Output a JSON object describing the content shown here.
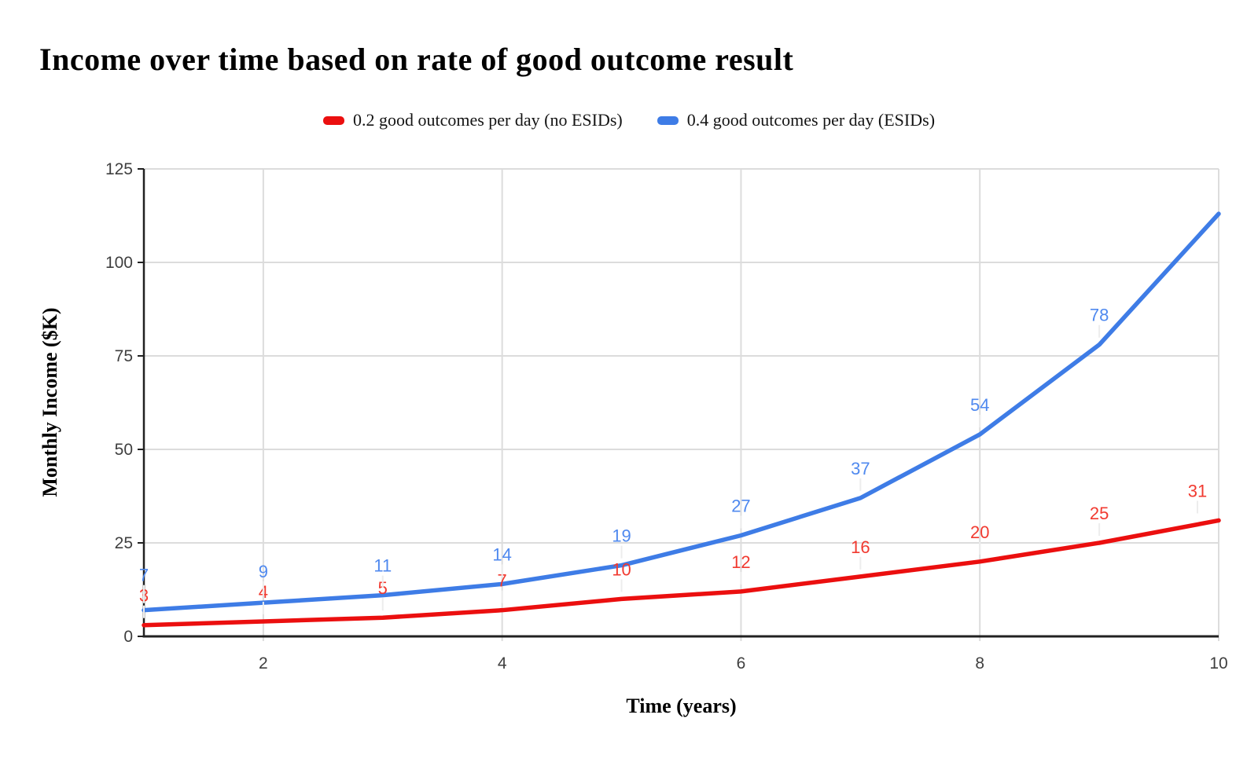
{
  "chart_data": {
    "type": "line",
    "title": "Income over time based on rate of good outcome result",
    "xlabel": "Time (years)",
    "ylabel": "Monthly Income ($K)",
    "xlim": [
      1,
      10
    ],
    "ylim": [
      0,
      125
    ],
    "xticks": [
      2,
      4,
      6,
      8,
      10
    ],
    "yticks": [
      0,
      25,
      50,
      75,
      100,
      125
    ],
    "grid": true,
    "legend_position": "top",
    "x": [
      1,
      2,
      3,
      4,
      5,
      6,
      7,
      8,
      9,
      10
    ],
    "series": [
      {
        "name": "0.2 good outcomes per day (no ESIDs)",
        "key": "no-esids",
        "color": "#eb0f0f",
        "label_color": "#f13a30",
        "values": [
          3,
          4,
          5,
          7,
          10,
          12,
          16,
          20,
          25,
          31
        ],
        "point_labels": [
          "3",
          "4",
          "5",
          "7",
          "10",
          "12",
          "16",
          "20",
          "25",
          "31"
        ]
      },
      {
        "name": "0.4 good outcomes per day (ESIDs)",
        "key": "esids",
        "color": "#3e7ce6",
        "label_color": "#4f89ef",
        "values": [
          7,
          9,
          11,
          14,
          19,
          27,
          37,
          54,
          78,
          113
        ],
        "point_labels": [
          "7",
          "9",
          "11",
          "14",
          "19",
          "27",
          "37",
          "54",
          "78",
          ""
        ]
      }
    ],
    "colors": {
      "background": "#ffffff",
      "title": "#000000",
      "legend_text": "#141414",
      "grid": "#dcdcdc",
      "axis": "#212121",
      "tick_label": "#3f3f3f",
      "leader": "#ededed"
    }
  }
}
